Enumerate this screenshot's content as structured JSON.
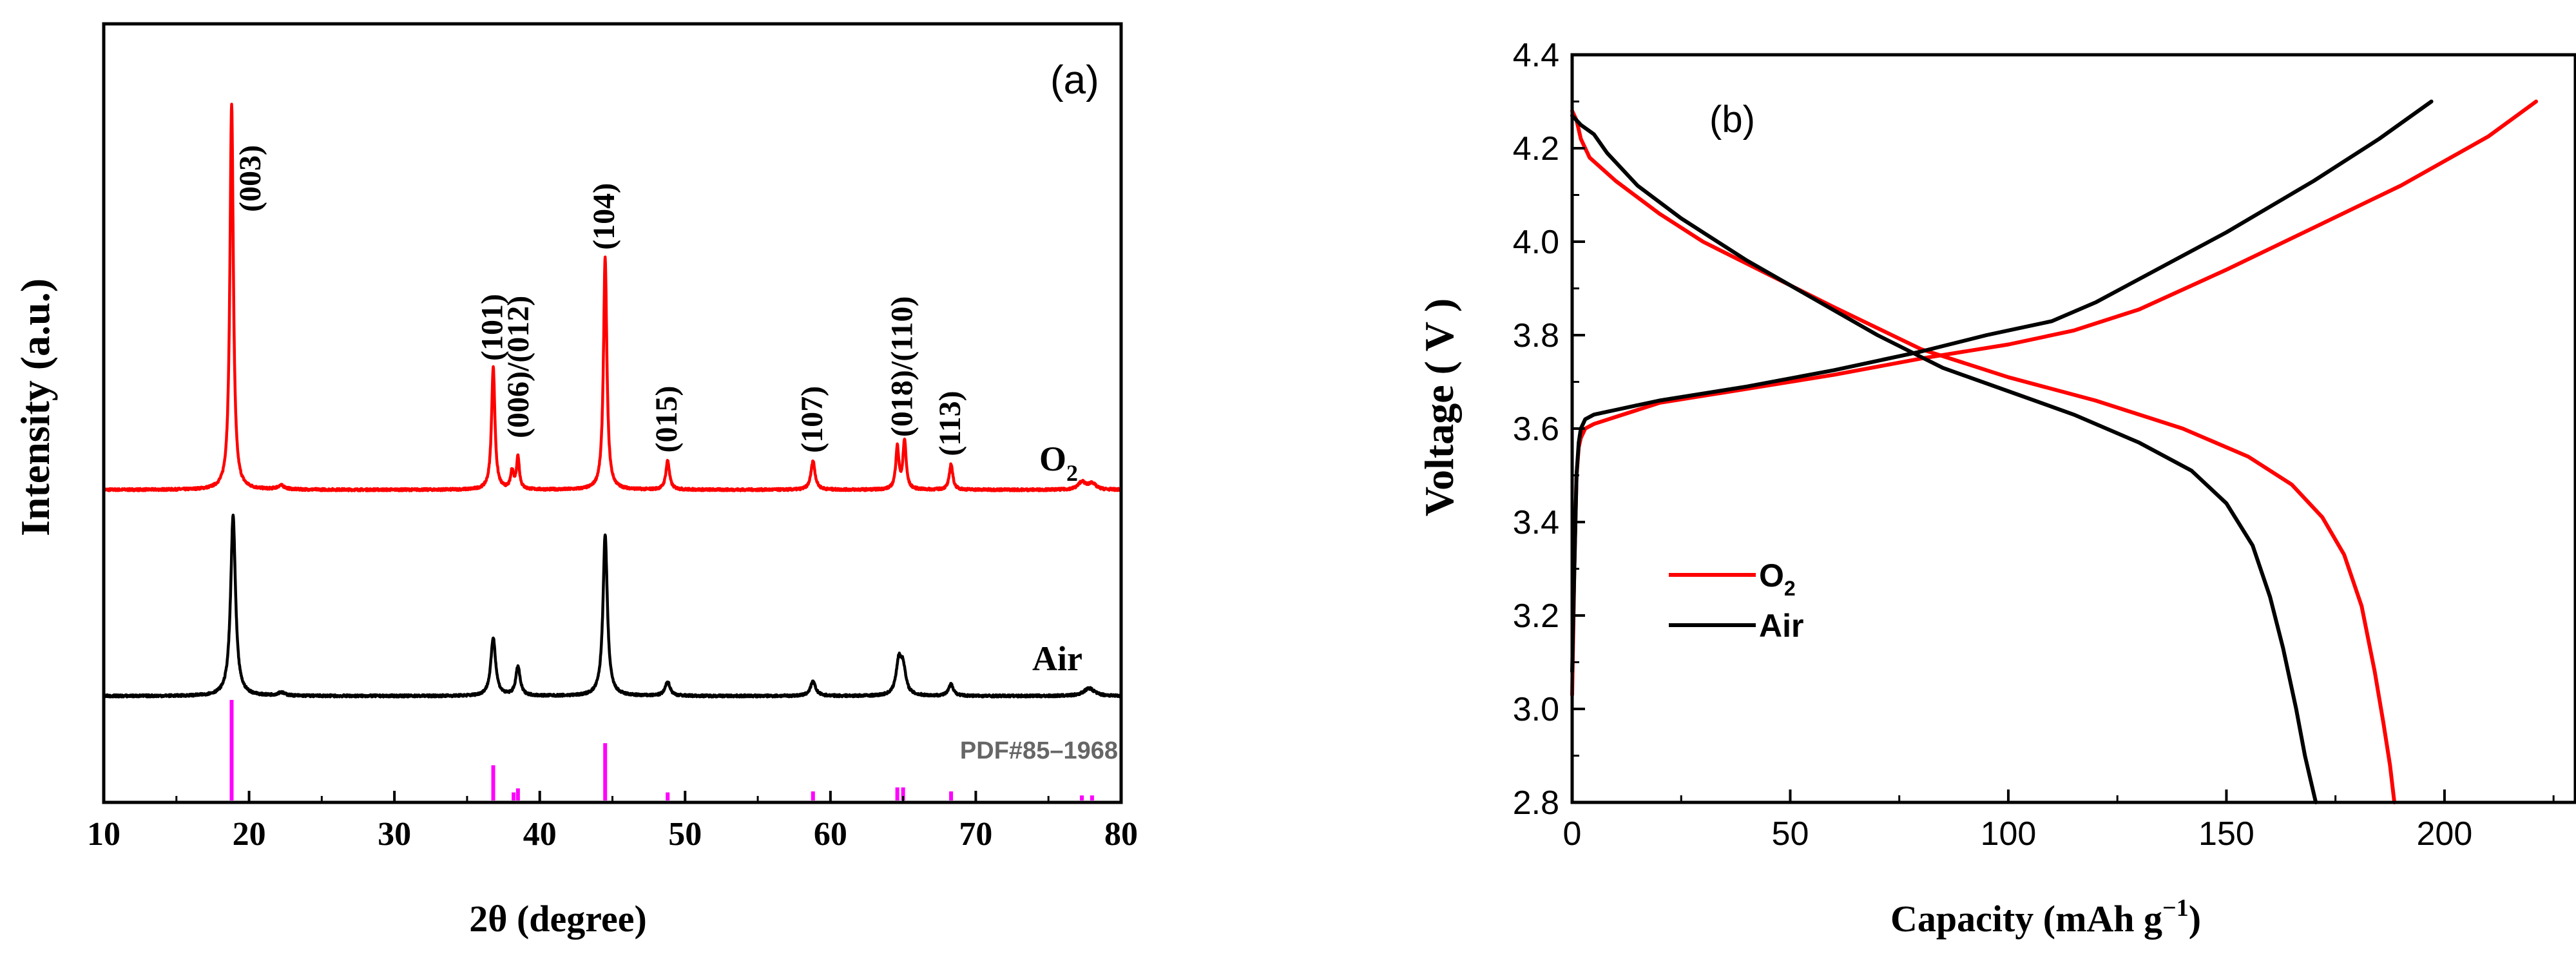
{
  "chart_data": [
    {
      "panel": "a",
      "type": "line",
      "panel_label": "(a)",
      "xlabel": "2θ (degree)",
      "ylabel": "Intensity (a.u.)",
      "xlim": [
        10,
        80
      ],
      "xticks": [
        10,
        20,
        30,
        40,
        50,
        60,
        70,
        80
      ],
      "x_tick_labels": [
        "10",
        "20",
        "30",
        "40",
        "50",
        "60",
        "70",
        "80"
      ],
      "yticks_visible": false,
      "series": [
        {
          "name": "O2",
          "label_main": "O",
          "label_sub": "2",
          "color": "#ff0000",
          "baseline": 3.2,
          "peaks": [
            {
              "x": 18.8,
              "h": 6.0,
              "w": 0.14
            },
            {
              "x": 22.2,
              "h": 0.06,
              "w": 0.3
            },
            {
              "x": 36.8,
              "h": 1.9,
              "w": 0.14
            },
            {
              "x": 38.1,
              "h": 0.28,
              "w": 0.12
            },
            {
              "x": 38.5,
              "h": 0.5,
              "w": 0.12
            },
            {
              "x": 44.5,
              "h": 3.6,
              "w": 0.14
            },
            {
              "x": 48.8,
              "h": 0.45,
              "w": 0.15
            },
            {
              "x": 58.8,
              "h": 0.45,
              "w": 0.17
            },
            {
              "x": 64.6,
              "h": 0.65,
              "w": 0.13
            },
            {
              "x": 65.1,
              "h": 0.75,
              "w": 0.13
            },
            {
              "x": 68.3,
              "h": 0.4,
              "w": 0.14
            },
            {
              "x": 77.3,
              "h": 0.12,
              "w": 0.3
            },
            {
              "x": 78.0,
              "h": 0.1,
              "w": 0.3
            }
          ]
        },
        {
          "name": "Air",
          "label_main": "Air",
          "color": "#000000",
          "baseline": 0.0,
          "peaks": [
            {
              "x": 18.9,
              "h": 2.8,
              "w": 0.2
            },
            {
              "x": 22.2,
              "h": 0.05,
              "w": 0.3
            },
            {
              "x": 36.8,
              "h": 0.9,
              "w": 0.2
            },
            {
              "x": 38.5,
              "h": 0.45,
              "w": 0.18
            },
            {
              "x": 44.5,
              "h": 2.5,
              "w": 0.18
            },
            {
              "x": 48.8,
              "h": 0.22,
              "w": 0.2
            },
            {
              "x": 58.8,
              "h": 0.22,
              "w": 0.22
            },
            {
              "x": 64.7,
              "h": 0.5,
              "w": 0.22
            },
            {
              "x": 65.0,
              "h": 0.4,
              "w": 0.22
            },
            {
              "x": 68.3,
              "h": 0.18,
              "w": 0.2
            },
            {
              "x": 77.8,
              "h": 0.12,
              "w": 0.45
            }
          ]
        }
      ],
      "reference": {
        "name": "PDF#85–1968",
        "color": "#ff00ff",
        "lines": [
          {
            "x": 18.8,
            "h": 1.0
          },
          {
            "x": 36.8,
            "h": 0.35
          },
          {
            "x": 38.2,
            "h": 0.08
          },
          {
            "x": 38.5,
            "h": 0.12
          },
          {
            "x": 44.5,
            "h": 0.57
          },
          {
            "x": 48.8,
            "h": 0.08
          },
          {
            "x": 58.8,
            "h": 0.09
          },
          {
            "x": 64.6,
            "h": 0.13
          },
          {
            "x": 65.0,
            "h": 0.13
          },
          {
            "x": 68.3,
            "h": 0.09
          },
          {
            "x": 77.3,
            "h": 0.05
          },
          {
            "x": 78.0,
            "h": 0.05
          }
        ]
      },
      "peak_labels": [
        {
          "text": "(003)",
          "x": 19.0
        },
        {
          "text": "(101)",
          "x": 36.8
        },
        {
          "text": "(006)/(012)",
          "x": 38.6
        },
        {
          "text": "(104)",
          "x": 44.5
        },
        {
          "text": "(015)",
          "x": 48.8
        },
        {
          "text": "(107)",
          "x": 58.8
        },
        {
          "text": "(018)/(110)",
          "x": 65.0
        },
        {
          "text": "(113)",
          "x": 68.3
        }
      ]
    },
    {
      "panel": "b",
      "type": "line",
      "panel_label": "(b)",
      "xlabel_main": "Capacity (mAh g",
      "xlabel_sup": "−1",
      "xlabel_end": ")",
      "ylabel": "Voltage ( V )",
      "xlim": [
        0,
        230
      ],
      "ylim": [
        2.8,
        4.4
      ],
      "xticks": [
        0,
        50,
        100,
        150,
        200
      ],
      "x_tick_labels": [
        "0",
        "50",
        "100",
        "150",
        "200"
      ],
      "yticks": [
        2.8,
        3.0,
        3.2,
        3.4,
        3.6,
        3.8,
        4.0,
        4.2,
        4.4
      ],
      "y_tick_labels": [
        "2.8",
        "3.0",
        "3.2",
        "3.4",
        "3.6",
        "3.8",
        "4.0",
        "4.2",
        "4.4"
      ],
      "legend_position": "center-left",
      "series": [
        {
          "name": "O2",
          "legend_main": "O",
          "legend_sub": "2",
          "color": "#ff0000",
          "charge": {
            "x": [
              0,
              0.5,
              1,
              1.5,
              2,
              3,
              5,
              10,
              20,
              40,
              60,
              80,
              100,
              115,
              130,
              150,
              170,
              190,
              210,
              221
            ],
            "y": [
              3.03,
              3.3,
              3.5,
              3.56,
              3.58,
              3.6,
              3.61,
              3.625,
              3.655,
              3.685,
              3.715,
              3.75,
              3.78,
              3.81,
              3.855,
              3.94,
              4.03,
              4.12,
              4.225,
              4.3
            ]
          },
          "discharge": {
            "x": [
              0,
              1,
              2,
              4,
              10,
              20,
              30,
              45,
              60,
              80,
              100,
              120,
              140,
              155,
              165,
              172,
              177,
              181,
              184,
              186,
              187.5,
              188.5
            ],
            "y": [
              4.28,
              4.26,
              4.22,
              4.18,
              4.13,
              4.06,
              4.0,
              3.93,
              3.86,
              3.77,
              3.71,
              3.66,
              3.6,
              3.54,
              3.48,
              3.41,
              3.33,
              3.22,
              3.08,
              2.97,
              2.88,
              2.8
            ]
          }
        },
        {
          "name": "Air",
          "legend_main": "Air",
          "color": "#000000",
          "charge": {
            "x": [
              0,
              0.5,
              1,
              1.5,
              2,
              3,
              5,
              10,
              20,
              40,
              60,
              80,
              95,
              110,
              120,
              130,
              150,
              170,
              185,
              197
            ],
            "y": [
              3.08,
              3.3,
              3.5,
              3.57,
              3.6,
              3.62,
              3.63,
              3.64,
              3.66,
              3.69,
              3.725,
              3.765,
              3.8,
              3.83,
              3.87,
              3.92,
              4.02,
              4.13,
              4.22,
              4.3
            ]
          },
          "discharge": {
            "x": [
              0,
              2,
              5,
              8,
              15,
              25,
              40,
              55,
              70,
              85,
              100,
              115,
              130,
              142,
              150,
              156,
              160,
              163,
              166,
              168,
              169.5,
              170.5
            ],
            "y": [
              4.27,
              4.25,
              4.23,
              4.19,
              4.12,
              4.05,
              3.96,
              3.88,
              3.8,
              3.73,
              3.68,
              3.63,
              3.57,
              3.51,
              3.44,
              3.35,
              3.24,
              3.13,
              3.0,
              2.9,
              2.84,
              2.8
            ]
          }
        }
      ]
    }
  ]
}
